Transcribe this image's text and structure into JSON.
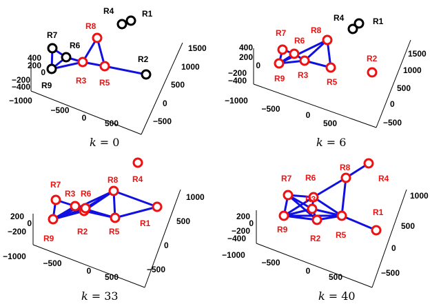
{
  "colors": {
    "edge": "#1010e0",
    "active_node": "#ee1111",
    "inactive_node": "#000000",
    "label_active": "#ee1111",
    "label_inactive": "#000000"
  },
  "panels": [
    {
      "caption": "k = 0",
      "caption_var": "k",
      "caption_eq": "= 0",
      "z_ticks": [
        "400",
        "200",
        "0",
        "−200",
        "−400"
      ],
      "x_ticks": [
        "−1000",
        "−500",
        "0",
        "500"
      ],
      "y_ticks": [
        "1500",
        "1000",
        "500",
        "0",
        "−500"
      ],
      "nodes": [
        {
          "id": "R1",
          "label": "R1",
          "active": false
        },
        {
          "id": "R2",
          "label": "R2",
          "active": false
        },
        {
          "id": "R3",
          "label": "R3",
          "active": true
        },
        {
          "id": "R4",
          "label": "R4",
          "active": false
        },
        {
          "id": "R5",
          "label": "R5",
          "active": true
        },
        {
          "id": "R6",
          "label": "R6",
          "active": false
        },
        {
          "id": "R7",
          "label": "R7",
          "active": false
        },
        {
          "id": "R8",
          "label": "R8",
          "active": true
        },
        {
          "id": "R9",
          "label": "R9",
          "active": false
        }
      ],
      "edges": [
        [
          "R7",
          "R9"
        ],
        [
          "R7",
          "R6"
        ],
        [
          "R9",
          "R6"
        ],
        [
          "R9",
          "R3"
        ],
        [
          "R6",
          "R3"
        ],
        [
          "R3",
          "R8"
        ],
        [
          "R8",
          "R5"
        ],
        [
          "R3",
          "R5"
        ],
        [
          "R5",
          "R2"
        ]
      ]
    },
    {
      "caption": "k = 6",
      "caption_var": "k",
      "caption_eq": "= 6",
      "z_ticks": [
        "400",
        "200",
        "0",
        "−200",
        "−400"
      ],
      "x_ticks": [
        "−1000",
        "−500",
        "0",
        "500"
      ],
      "y_ticks": [
        "1500",
        "1000",
        "500",
        "0",
        "−500"
      ],
      "nodes": [
        {
          "id": "R1",
          "label": "R1",
          "active": false
        },
        {
          "id": "R2",
          "label": "R2",
          "active": true
        },
        {
          "id": "R3",
          "label": "R3",
          "active": true
        },
        {
          "id": "R4",
          "label": "R4",
          "active": false
        },
        {
          "id": "R5",
          "label": "R5",
          "active": true
        },
        {
          "id": "R6",
          "label": "R6",
          "active": true
        },
        {
          "id": "R7",
          "label": "R7",
          "active": true
        },
        {
          "id": "R8",
          "label": "R8",
          "active": true
        },
        {
          "id": "R9",
          "label": "R9",
          "active": true
        }
      ],
      "edges": [
        [
          "R7",
          "R9"
        ],
        [
          "R7",
          "R6"
        ],
        [
          "R9",
          "R6"
        ],
        [
          "R9",
          "R3"
        ],
        [
          "R6",
          "R3"
        ],
        [
          "R3",
          "R8"
        ],
        [
          "R8",
          "R5"
        ],
        [
          "R3",
          "R5"
        ],
        [
          "R9",
          "R8"
        ]
      ]
    },
    {
      "caption": "k = 33",
      "caption_var": "k",
      "caption_eq": "= 33",
      "z_ticks": [
        "200",
        "0",
        "−200"
      ],
      "x_ticks": [
        "−1000",
        "−500",
        "0",
        "500"
      ],
      "y_ticks": [
        "1000",
        "500",
        "0",
        "−500"
      ],
      "nodes": [
        {
          "id": "R1",
          "label": "R1",
          "active": true
        },
        {
          "id": "R2",
          "label": "R2",
          "active": true
        },
        {
          "id": "R3",
          "label": "R3",
          "active": true
        },
        {
          "id": "R4",
          "label": "R4",
          "active": true
        },
        {
          "id": "R5",
          "label": "R5",
          "active": true
        },
        {
          "id": "R6",
          "label": "R6",
          "active": true
        },
        {
          "id": "R7",
          "label": "R7",
          "active": true
        },
        {
          "id": "R8",
          "label": "R8",
          "active": true
        },
        {
          "id": "R9",
          "label": "R9",
          "active": true
        }
      ],
      "edges": [
        [
          "R7",
          "R9"
        ],
        [
          "R7",
          "R3"
        ],
        [
          "R9",
          "R3"
        ],
        [
          "R9",
          "R6"
        ],
        [
          "R9",
          "R2"
        ],
        [
          "R9",
          "R8"
        ],
        [
          "R3",
          "R6"
        ],
        [
          "R3",
          "R2"
        ],
        [
          "R6",
          "R2"
        ],
        [
          "R6",
          "R8"
        ],
        [
          "R2",
          "R8"
        ],
        [
          "R8",
          "R5"
        ],
        [
          "R2",
          "R5"
        ],
        [
          "R8",
          "R1"
        ],
        [
          "R5",
          "R1"
        ],
        [
          "R3",
          "R5"
        ]
      ]
    },
    {
      "caption": "k = 40",
      "caption_var": "k",
      "caption_eq": "= 40",
      "z_ticks": [
        "200",
        "0",
        "−200",
        "−400"
      ],
      "x_ticks": [
        "−1000",
        "−500",
        "0",
        "500"
      ],
      "y_ticks": [
        "1000",
        "500",
        "0",
        "−500"
      ],
      "nodes": [
        {
          "id": "R1",
          "label": "R1",
          "active": true
        },
        {
          "id": "R2",
          "label": "R2",
          "active": true
        },
        {
          "id": "R3",
          "label": "R3",
          "active": true
        },
        {
          "id": "R4",
          "label": "R4",
          "active": true
        },
        {
          "id": "R5",
          "label": "R5",
          "active": true
        },
        {
          "id": "R6",
          "label": "R6",
          "active": true
        },
        {
          "id": "R7",
          "label": "R7",
          "active": true
        },
        {
          "id": "R8",
          "label": "R8",
          "active": true
        },
        {
          "id": "R9",
          "label": "R9",
          "active": true
        }
      ],
      "edges": [
        [
          "R7",
          "R9"
        ],
        [
          "R7",
          "R6"
        ],
        [
          "R7",
          "R3"
        ],
        [
          "R7",
          "R2"
        ],
        [
          "R9",
          "R6"
        ],
        [
          "R9",
          "R3"
        ],
        [
          "R9",
          "R2"
        ],
        [
          "R9",
          "R5"
        ],
        [
          "R6",
          "R3"
        ],
        [
          "R6",
          "R5"
        ],
        [
          "R3",
          "R2"
        ],
        [
          "R3",
          "R5"
        ],
        [
          "R2",
          "R5"
        ],
        [
          "R8",
          "R6"
        ],
        [
          "R8",
          "R5"
        ],
        [
          "R8",
          "R4"
        ],
        [
          "R5",
          "R1"
        ]
      ]
    }
  ]
}
